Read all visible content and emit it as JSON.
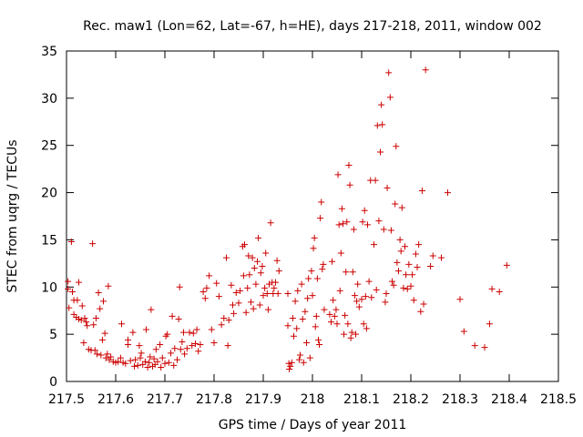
{
  "chart_data": {
    "type": "scatter",
    "title": "Rec. maw1 (Lon=62, Lat=-67, h=HE), days 217-218, 2011, window 002",
    "xlabel": "GPS time / Days of year 2011",
    "ylabel": "STEC from uqrg / TECUs",
    "xlim": [
      217.5,
      218.5
    ],
    "ylim": [
      0,
      35
    ],
    "x_ticks": [
      217.5,
      217.6,
      217.7,
      217.8,
      217.9,
      218.0,
      218.1,
      218.2,
      218.3,
      218.4,
      218.5
    ],
    "x_tick_labels": [
      "217.5",
      "217.6",
      "217.7",
      "217.8",
      "217.9",
      "218",
      "218.1",
      "218.2",
      "218.3",
      "218.4",
      "218.5"
    ],
    "y_ticks": [
      0,
      5,
      10,
      15,
      20,
      25,
      30,
      35
    ],
    "y_tick_labels": [
      "0",
      "5",
      "10",
      "15",
      "20",
      "25",
      "30",
      "35"
    ],
    "grid": false,
    "legend": "none",
    "marker": "plus",
    "color": "#cc0000",
    "series": [
      {
        "points": [
          [
            217.503,
            10.6
          ],
          [
            217.503,
            9.8
          ],
          [
            217.505,
            7.8
          ],
          [
            217.51,
            14.8
          ],
          [
            217.512,
            9.5
          ],
          [
            217.515,
            8.6
          ],
          [
            217.515,
            7.1
          ],
          [
            217.52,
            6.8
          ],
          [
            217.522,
            8.6
          ],
          [
            217.525,
            10.5
          ],
          [
            217.525,
            6.6
          ],
          [
            217.53,
            6.5
          ],
          [
            217.532,
            8.0
          ],
          [
            217.535,
            4.1
          ],
          [
            217.537,
            6.7
          ],
          [
            217.54,
            6.3
          ],
          [
            217.542,
            5.9
          ],
          [
            217.545,
            3.4
          ],
          [
            217.55,
            3.3
          ],
          [
            217.553,
            14.6
          ],
          [
            217.555,
            6.0
          ],
          [
            217.558,
            3.3
          ],
          [
            217.56,
            6.7
          ],
          [
            217.562,
            2.9
          ],
          [
            217.565,
            9.4
          ],
          [
            217.568,
            7.7
          ],
          [
            217.57,
            2.8
          ],
          [
            217.573,
            4.4
          ],
          [
            217.575,
            8.5
          ],
          [
            217.578,
            5.1
          ],
          [
            217.58,
            2.5
          ],
          [
            217.583,
            2.9
          ],
          [
            217.585,
            10.1
          ],
          [
            217.587,
            2.3
          ],
          [
            217.59,
            2.6
          ],
          [
            217.595,
            2.1
          ],
          [
            217.6,
            2.0
          ],
          [
            217.605,
            2.1
          ],
          [
            217.61,
            2.5
          ],
          [
            217.612,
            6.1
          ],
          [
            217.615,
            2.0
          ],
          [
            217.62,
            1.9
          ],
          [
            217.625,
            4.4
          ],
          [
            217.625,
            3.9
          ],
          [
            217.63,
            2.2
          ],
          [
            217.635,
            5.2
          ],
          [
            217.638,
            1.6
          ],
          [
            217.64,
            2.3
          ],
          [
            217.645,
            1.7
          ],
          [
            217.648,
            3.8
          ],
          [
            217.65,
            2.5
          ],
          [
            217.652,
            3.0
          ],
          [
            217.655,
            1.8
          ],
          [
            217.66,
            2.1
          ],
          [
            217.662,
            5.5
          ],
          [
            217.665,
            1.5
          ],
          [
            217.668,
            2.0
          ],
          [
            217.67,
            2.6
          ],
          [
            217.672,
            7.6
          ],
          [
            217.675,
            1.6
          ],
          [
            217.678,
            2.4
          ],
          [
            217.68,
            1.8
          ],
          [
            217.682,
            3.4
          ],
          [
            217.685,
            2.1
          ],
          [
            217.69,
            3.9
          ],
          [
            217.692,
            1.5
          ],
          [
            217.695,
            2.5
          ],
          [
            217.7,
            1.9
          ],
          [
            217.702,
            4.8
          ],
          [
            217.705,
            5.0
          ],
          [
            217.708,
            2.0
          ],
          [
            217.712,
            3.0
          ],
          [
            217.715,
            6.9
          ],
          [
            217.718,
            1.7
          ],
          [
            217.72,
            3.5
          ],
          [
            217.725,
            2.3
          ],
          [
            217.728,
            6.6
          ],
          [
            217.73,
            10.0
          ],
          [
            217.732,
            3.4
          ],
          [
            217.735,
            4.2
          ],
          [
            217.738,
            5.2
          ],
          [
            217.74,
            2.9
          ],
          [
            217.745,
            3.5
          ],
          [
            217.75,
            5.2
          ],
          [
            217.755,
            3.8
          ],
          [
            217.758,
            5.1
          ],
          [
            217.762,
            4.0
          ],
          [
            217.765,
            5.5
          ],
          [
            217.768,
            3.2
          ],
          [
            217.772,
            3.9
          ],
          [
            217.778,
            9.5
          ],
          [
            217.782,
            8.8
          ],
          [
            217.785,
            9.9
          ],
          [
            217.79,
            11.2
          ],
          [
            217.795,
            5.5
          ],
          [
            217.8,
            4.1
          ],
          [
            217.805,
            10.4
          ],
          [
            217.81,
            9.0
          ],
          [
            217.815,
            6.0
          ],
          [
            217.82,
            6.7
          ],
          [
            217.825,
            13.1
          ],
          [
            217.828,
            3.8
          ],
          [
            217.83,
            6.5
          ],
          [
            217.835,
            10.2
          ],
          [
            217.838,
            8.1
          ],
          [
            217.84,
            7.2
          ],
          [
            217.845,
            9.4
          ],
          [
            217.85,
            8.3
          ],
          [
            217.853,
            9.6
          ],
          [
            217.858,
            14.3
          ],
          [
            217.86,
            11.2
          ],
          [
            217.862,
            14.5
          ],
          [
            217.865,
            7.3
          ],
          [
            217.868,
            9.9
          ],
          [
            217.87,
            13.3
          ],
          [
            217.872,
            11.3
          ],
          [
            217.875,
            8.4
          ],
          [
            217.878,
            13.1
          ],
          [
            217.88,
            7.7
          ],
          [
            217.882,
            12.0
          ],
          [
            217.885,
            10.3
          ],
          [
            217.888,
            12.7
          ],
          [
            217.89,
            15.2
          ],
          [
            217.893,
            8.1
          ],
          [
            217.895,
            11.5
          ],
          [
            217.898,
            12.2
          ],
          [
            217.9,
            9.1
          ],
          [
            217.903,
            9.9
          ],
          [
            217.905,
            13.6
          ],
          [
            217.908,
            9.3
          ],
          [
            217.91,
            7.6
          ],
          [
            217.912,
            10.3
          ],
          [
            217.915,
            16.8
          ],
          [
            217.918,
            10.5
          ],
          [
            217.92,
            9.3
          ],
          [
            217.922,
            9.9
          ],
          [
            217.925,
            10.5
          ],
          [
            217.928,
            12.8
          ],
          [
            217.93,
            9.3
          ],
          [
            217.932,
            11.7
          ],
          [
            217.95,
            9.3
          ],
          [
            217.95,
            5.9
          ],
          [
            217.952,
            1.9
          ],
          [
            217.953,
            1.3
          ],
          [
            217.955,
            1.6
          ],
          [
            217.958,
            2.0
          ],
          [
            217.96,
            6.7
          ],
          [
            217.962,
            4.8
          ],
          [
            217.965,
            8.5
          ],
          [
            217.968,
            5.6
          ],
          [
            217.97,
            9.6
          ],
          [
            217.973,
            2.3
          ],
          [
            217.975,
            2.8
          ],
          [
            217.978,
            10.3
          ],
          [
            217.98,
            6.6
          ],
          [
            217.982,
            2.0
          ],
          [
            217.985,
            7.4
          ],
          [
            217.988,
            4.1
          ],
          [
            217.99,
            8.8
          ],
          [
            217.992,
            10.9
          ],
          [
            217.995,
            2.5
          ],
          [
            217.998,
            11.7
          ],
          [
            218.0,
            9.1
          ],
          [
            218.002,
            14.1
          ],
          [
            218.004,
            15.2
          ],
          [
            218.006,
            5.8
          ],
          [
            218.008,
            6.9
          ],
          [
            218.01,
            10.9
          ],
          [
            218.012,
            4.4
          ],
          [
            218.014,
            3.9
          ],
          [
            218.016,
            17.3
          ],
          [
            218.018,
            19.0
          ],
          [
            218.02,
            11.9
          ],
          [
            218.022,
            12.4
          ],
          [
            218.024,
            7.6
          ],
          [
            218.035,
            7.1
          ],
          [
            218.038,
            6.3
          ],
          [
            218.04,
            12.7
          ],
          [
            218.042,
            8.6
          ],
          [
            218.045,
            6.9
          ],
          [
            218.048,
            7.6
          ],
          [
            218.05,
            6.1
          ],
          [
            218.052,
            21.9
          ],
          [
            218.054,
            16.6
          ],
          [
            218.056,
            9.6
          ],
          [
            218.058,
            13.6
          ],
          [
            218.06,
            18.3
          ],
          [
            218.062,
            16.7
          ],
          [
            218.064,
            5.0
          ],
          [
            218.066,
            7.0
          ],
          [
            218.068,
            11.6
          ],
          [
            218.07,
            16.9
          ],
          [
            218.072,
            6.1
          ],
          [
            218.074,
            22.9
          ],
          [
            218.076,
            20.8
          ],
          [
            218.078,
            4.6
          ],
          [
            218.08,
            5.2
          ],
          [
            218.082,
            11.6
          ],
          [
            218.084,
            16.1
          ],
          [
            218.086,
            9.1
          ],
          [
            218.088,
            5.0
          ],
          [
            218.09,
            8.5
          ],
          [
            218.092,
            10.3
          ],
          [
            218.095,
            7.9
          ],
          [
            218.1,
            8.7
          ],
          [
            218.102,
            16.9
          ],
          [
            218.104,
            6.1
          ],
          [
            218.106,
            18.1
          ],
          [
            218.108,
            9.0
          ],
          [
            218.11,
            5.6
          ],
          [
            218.112,
            16.6
          ],
          [
            218.115,
            10.6
          ],
          [
            218.118,
            21.3
          ],
          [
            218.12,
            8.9
          ],
          [
            218.125,
            14.5
          ],
          [
            218.128,
            21.3
          ],
          [
            218.13,
            9.7
          ],
          [
            218.132,
            27.1
          ],
          [
            218.135,
            17.0
          ],
          [
            218.138,
            24.3
          ],
          [
            218.14,
            29.3
          ],
          [
            218.142,
            27.2
          ],
          [
            218.145,
            16.1
          ],
          [
            218.148,
            8.4
          ],
          [
            218.15,
            9.3
          ],
          [
            218.152,
            20.5
          ],
          [
            218.155,
            32.7
          ],
          [
            218.158,
            30.1
          ],
          [
            218.16,
            16.0
          ],
          [
            218.162,
            10.6
          ],
          [
            218.165,
            10.2
          ],
          [
            218.168,
            18.8
          ],
          [
            218.17,
            24.9
          ],
          [
            218.172,
            12.6
          ],
          [
            218.175,
            11.7
          ],
          [
            218.178,
            15.0
          ],
          [
            218.18,
            13.8
          ],
          [
            218.182,
            18.4
          ],
          [
            218.185,
            9.9
          ],
          [
            218.188,
            14.3
          ],
          [
            218.19,
            11.3
          ],
          [
            218.193,
            9.8
          ],
          [
            218.196,
            12.4
          ],
          [
            218.2,
            10.1
          ],
          [
            218.203,
            11.3
          ],
          [
            218.206,
            8.6
          ],
          [
            218.21,
            13.5
          ],
          [
            218.213,
            12.1
          ],
          [
            218.216,
            14.5
          ],
          [
            218.22,
            7.4
          ],
          [
            218.223,
            20.2
          ],
          [
            218.226,
            8.2
          ],
          [
            218.23,
            33.0
          ],
          [
            218.24,
            12.2
          ],
          [
            218.245,
            13.3
          ],
          [
            218.262,
            13.1
          ],
          [
            218.275,
            20.0
          ],
          [
            218.3,
            8.7
          ],
          [
            218.308,
            5.3
          ],
          [
            218.33,
            3.8
          ],
          [
            218.35,
            3.6
          ],
          [
            218.36,
            6.1
          ],
          [
            218.365,
            9.8
          ],
          [
            218.38,
            9.5
          ],
          [
            218.395,
            12.3
          ]
        ]
      }
    ]
  }
}
